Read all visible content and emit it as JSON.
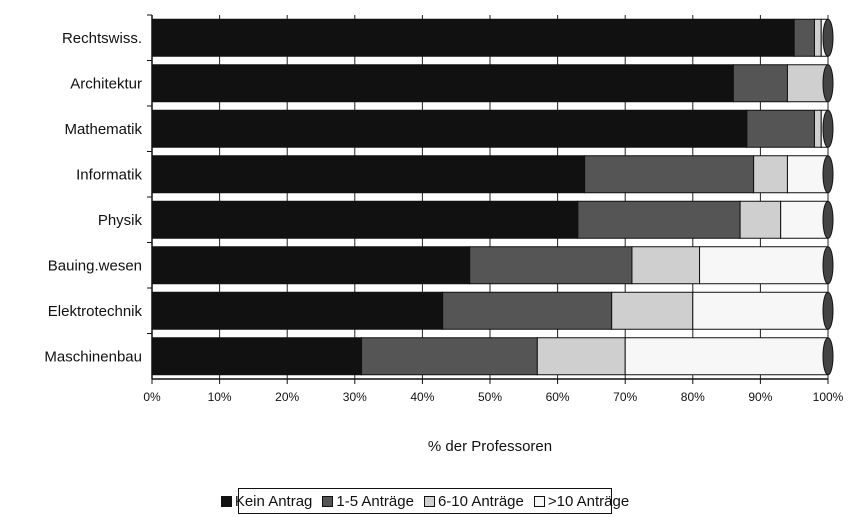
{
  "chart_data": {
    "type": "bar",
    "orientation": "horizontal",
    "stacked": "percent",
    "categories": [
      "Rechtswiss.",
      "Architektur",
      "Mathematik",
      "Informatik",
      "Physik",
      "Bauing.wesen",
      "Elektrotechnik",
      "Maschinenbau"
    ],
    "series": [
      {
        "name": "Kein Antrag",
        "color": "#111111",
        "values": [
          95,
          86,
          88,
          64,
          63,
          47,
          43,
          31
        ]
      },
      {
        "name": "1-5 Anträge",
        "color": "#555555",
        "values": [
          3,
          8,
          10,
          25,
          24,
          24,
          25,
          26
        ]
      },
      {
        "name": "6-10 Anträge",
        "color": "#cfcfcf",
        "values": [
          1,
          6,
          1,
          5,
          6,
          10,
          12,
          13
        ]
      },
      {
        "name": ">10 Anträge",
        "color": "#f7f7f7",
        "values": [
          1,
          0,
          1,
          6,
          7,
          19,
          20,
          30
        ]
      }
    ],
    "xlim": [
      0,
      100
    ],
    "x_ticks": [
      "0%",
      "10%",
      "20%",
      "30%",
      "40%",
      "50%",
      "60%",
      "70%",
      "80%",
      "90%",
      "100%"
    ],
    "xlabel": "% der Professoren",
    "ylabel": "",
    "title": "",
    "legend_position": "bottom",
    "grid": "vertical"
  }
}
